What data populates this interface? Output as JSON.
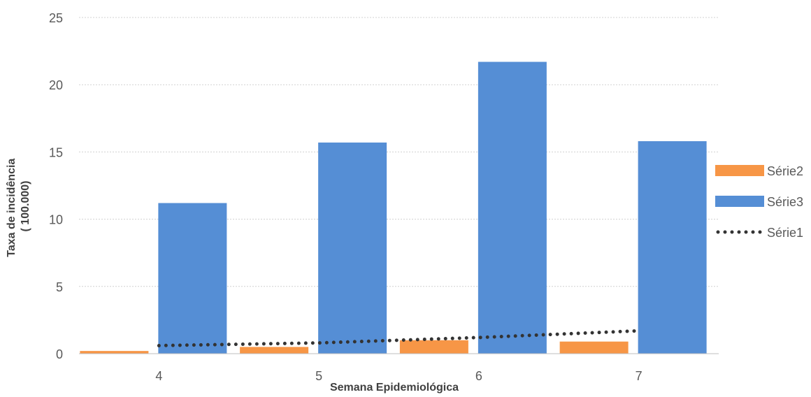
{
  "chart_data": {
    "type": "bar",
    "categories": [
      "4",
      "5",
      "6",
      "7"
    ],
    "series": [
      {
        "name": "Série2",
        "kind": "bar",
        "color": "#F79646",
        "values": [
          0.2,
          0.5,
          1.0,
          0.9
        ]
      },
      {
        "name": "Série3",
        "kind": "bar",
        "color": "#558ED5",
        "values": [
          11.2,
          15.7,
          21.7,
          15.8
        ]
      },
      {
        "name": "Série1",
        "kind": "line",
        "line_style": "dotted",
        "color": "#333333",
        "values": [
          0.6,
          0.8,
          1.2,
          1.7
        ]
      }
    ],
    "xlabel": "Semana Epidemiológica",
    "ylabel_lines": [
      "Taxa de incidência",
      "( 100.000)"
    ],
    "ylim": [
      0,
      25
    ],
    "yticks": [
      0,
      5,
      10,
      15,
      20,
      25
    ],
    "grid": true,
    "legend_position": "right",
    "legend_order": [
      "Série2",
      "Série3",
      "Série1"
    ]
  }
}
